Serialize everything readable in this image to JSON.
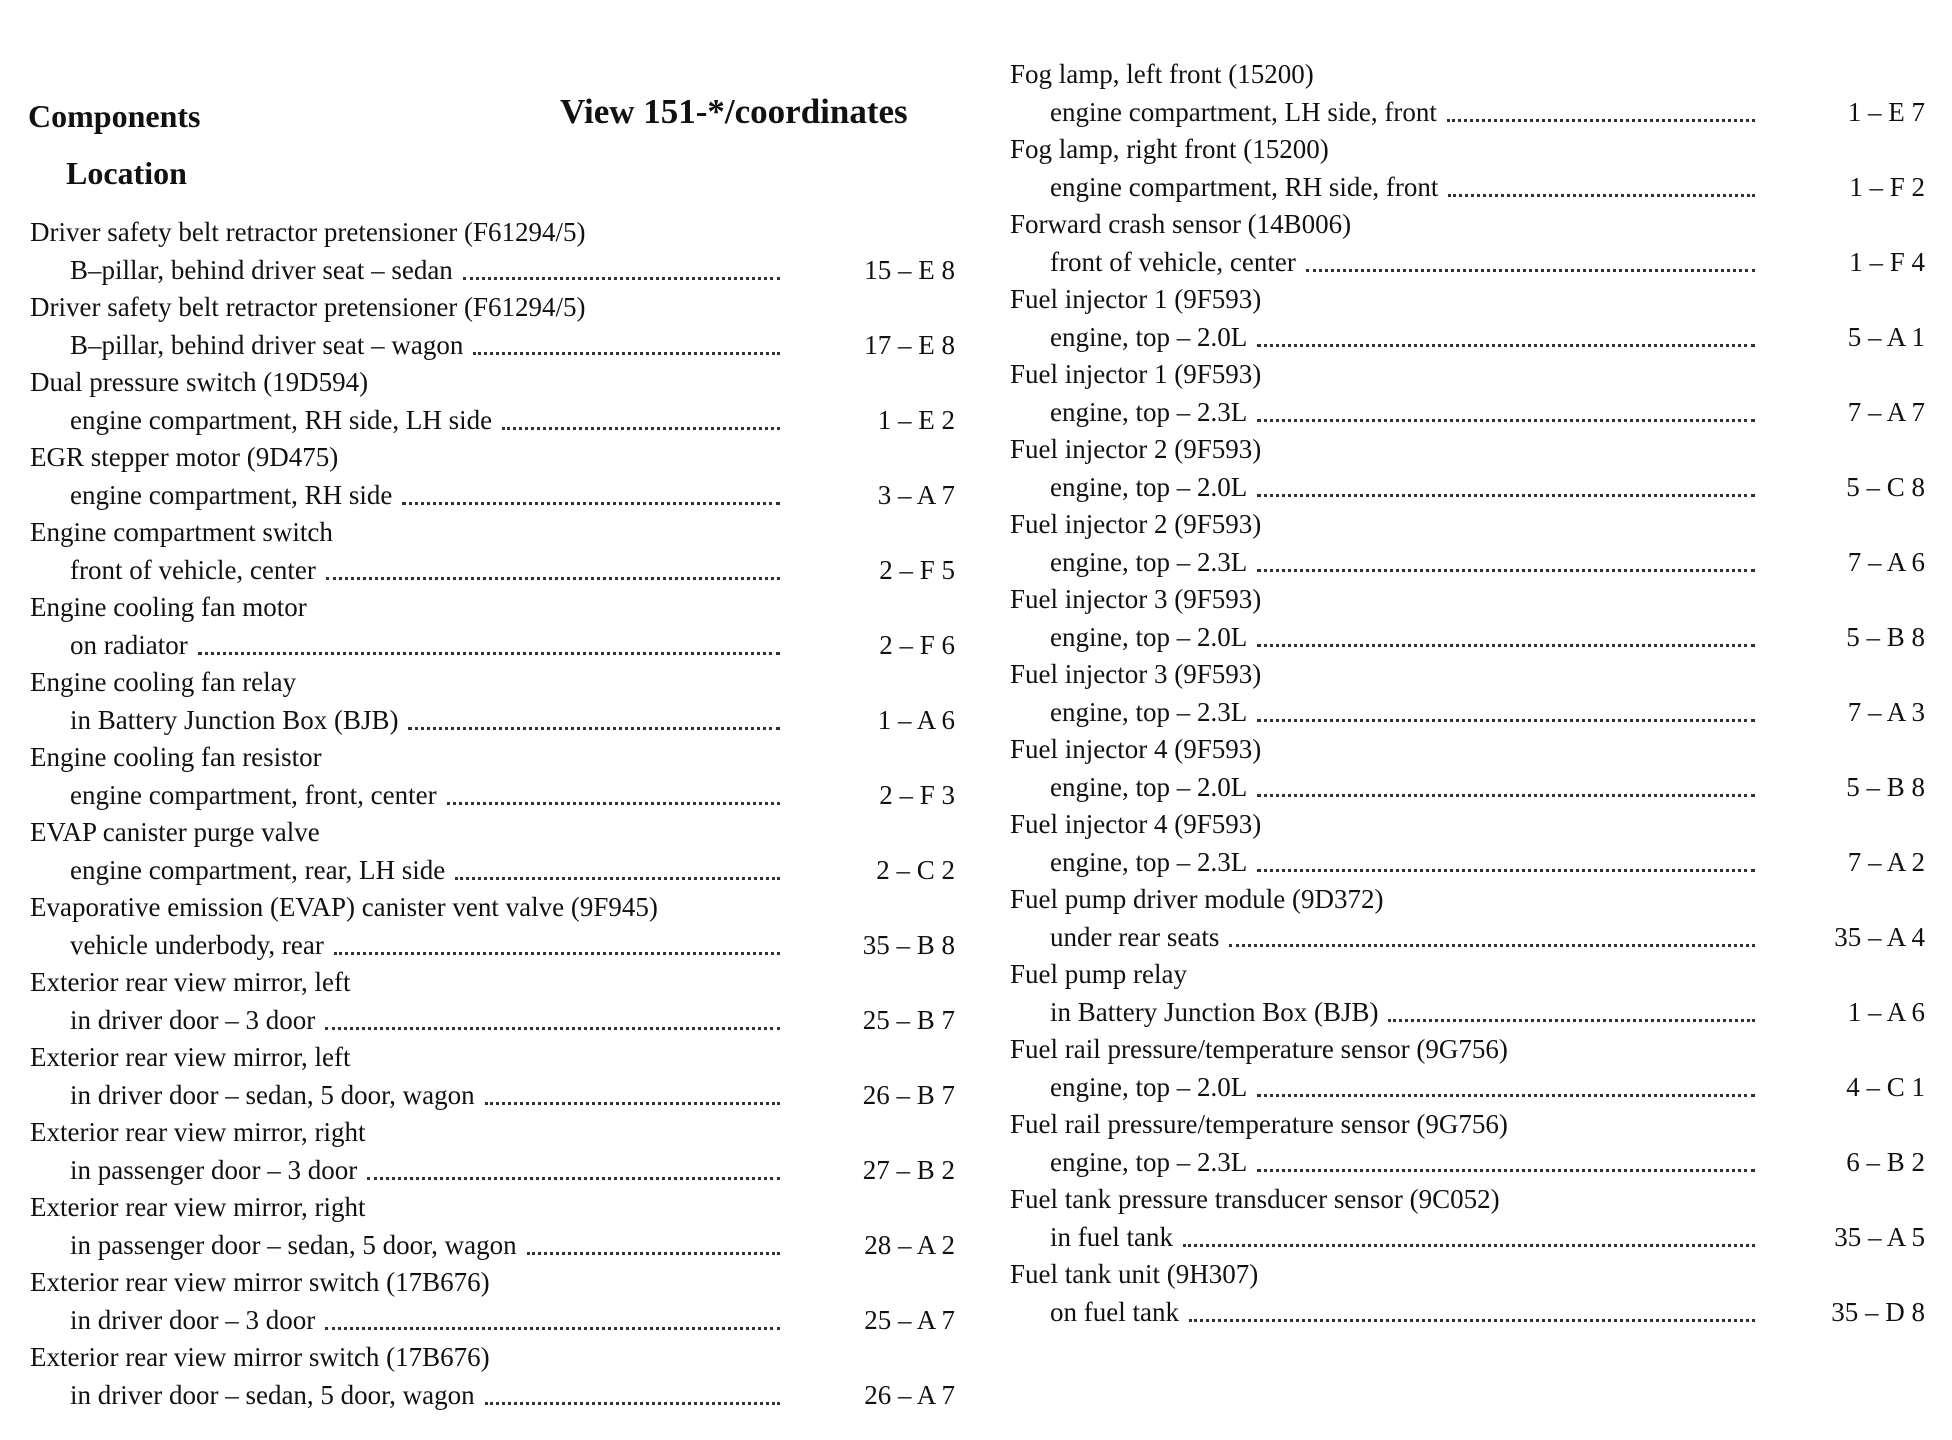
{
  "header": {
    "components": "Components",
    "location": "Location",
    "view": "View 151-*/coordinates"
  },
  "left": [
    {
      "name": "Driver safety belt retractor pretensioner (F61294/5)",
      "location": "B–pillar, behind driver seat – sedan",
      "coord": "15 – E 8"
    },
    {
      "name": "Driver safety belt retractor pretensioner (F61294/5)",
      "location": "B–pillar, behind driver seat – wagon",
      "coord": "17 – E 8"
    },
    {
      "name": "Dual pressure switch (19D594)",
      "location": "engine compartment, RH side, LH side",
      "coord": "1 – E 2"
    },
    {
      "name": "EGR stepper motor (9D475)",
      "location": "engine compartment, RH side",
      "coord": "3 – A 7"
    },
    {
      "name": "Engine compartment switch",
      "location": "front of vehicle, center",
      "coord": "2 – F 5"
    },
    {
      "name": "Engine cooling fan motor",
      "location": "on radiator",
      "coord": "2 – F 6"
    },
    {
      "name": "Engine cooling fan relay",
      "location": "in Battery Junction Box (BJB)",
      "coord": "1 – A 6"
    },
    {
      "name": "Engine cooling fan resistor",
      "location": "engine compartment, front, center",
      "coord": "2 – F 3"
    },
    {
      "name": "EVAP canister purge valve",
      "location": "engine compartment, rear, LH side",
      "coord": "2 – C 2"
    },
    {
      "name": "Evaporative emission (EVAP) canister vent valve (9F945)",
      "location": "vehicle underbody, rear",
      "coord": "35 – B 8"
    },
    {
      "name": "Exterior rear view mirror, left",
      "location": "in driver door – 3 door",
      "coord": "25 – B 7"
    },
    {
      "name": "Exterior rear view mirror, left",
      "location": "in driver door – sedan, 5 door, wagon",
      "coord": "26 – B 7"
    },
    {
      "name": "Exterior rear view mirror, right",
      "location": "in passenger door – 3 door",
      "coord": "27 – B 2"
    },
    {
      "name": "Exterior rear view mirror, right",
      "location": "in passenger door – sedan, 5 door, wagon",
      "coord": "28 – A 2"
    },
    {
      "name": "Exterior rear view mirror switch (17B676)",
      "location": "in driver door – 3 door",
      "coord": "25 – A 7"
    },
    {
      "name": "Exterior rear view mirror switch (17B676)",
      "location": "in driver door – sedan, 5 door, wagon",
      "coord": "26 – A 7"
    }
  ],
  "right": [
    {
      "name": "Fog lamp, left front (15200)",
      "location": "engine compartment, LH side, front",
      "coord": "1 – E 7"
    },
    {
      "name": "Fog lamp, right front (15200)",
      "location": "engine compartment, RH side, front",
      "coord": "1 – F 2"
    },
    {
      "name": "Forward crash sensor (14B006)",
      "location": "front of vehicle, center",
      "coord": "1 – F 4"
    },
    {
      "name": "Fuel injector 1 (9F593)",
      "location": "engine, top – 2.0L",
      "coord": "5 – A 1"
    },
    {
      "name": "Fuel injector 1 (9F593)",
      "location": "engine, top – 2.3L",
      "coord": "7 – A 7"
    },
    {
      "name": "Fuel injector 2 (9F593)",
      "location": "engine, top – 2.0L",
      "coord": "5 – C 8"
    },
    {
      "name": "Fuel injector 2 (9F593)",
      "location": "engine, top – 2.3L",
      "coord": "7 – A 6"
    },
    {
      "name": "Fuel injector 3 (9F593)",
      "location": "engine, top – 2.0L",
      "coord": "5 – B 8"
    },
    {
      "name": "Fuel injector 3 (9F593)",
      "location": "engine, top – 2.3L",
      "coord": "7 – A 3"
    },
    {
      "name": "Fuel injector 4 (9F593)",
      "location": "engine, top – 2.0L",
      "coord": "5 – B 8"
    },
    {
      "name": "Fuel injector 4 (9F593)",
      "location": "engine, top – 2.3L",
      "coord": "7 – A 2"
    },
    {
      "name": "Fuel pump driver module (9D372)",
      "location": "under rear seats",
      "coord": "35 – A 4"
    },
    {
      "name": "Fuel pump relay",
      "location": "in Battery Junction Box (BJB)",
      "coord": "1 – A 6"
    },
    {
      "name": "Fuel rail pressure/temperature sensor (9G756)",
      "location": "engine, top – 2.0L",
      "coord": "4 – C 1"
    },
    {
      "name": "Fuel rail pressure/temperature sensor (9G756)",
      "location": "engine, top – 2.3L",
      "coord": "6 – B 2"
    },
    {
      "name": "Fuel tank pressure transducer sensor (9C052)",
      "location": "in fuel tank",
      "coord": "35 – A 5"
    },
    {
      "name": "Fuel tank unit (9H307)",
      "location": "on fuel tank",
      "coord": "35 – D 8"
    }
  ]
}
